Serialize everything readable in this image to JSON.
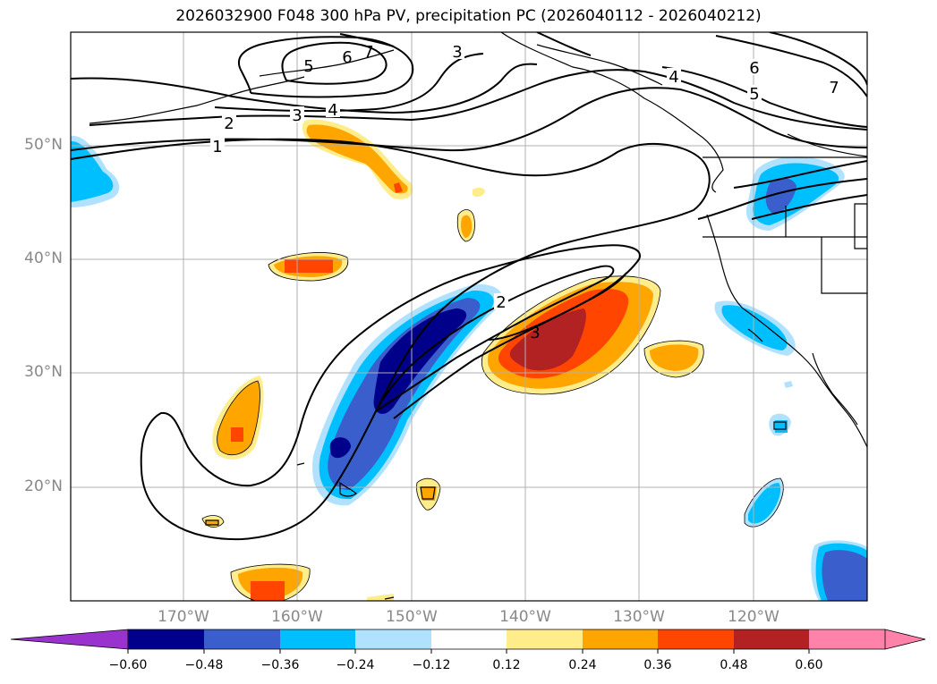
{
  "title": "2026032900 F048 300 hPa PV, precipitation PC (2026040112 - 2026040212)",
  "map": {
    "projection": "PlateCarree",
    "lon_range": [
      -180,
      -110
    ],
    "lat_range": [
      10,
      60
    ],
    "lat_ticks": [
      "50°N",
      "40°N",
      "30°N",
      "20°N"
    ],
    "lat_tick_values": [
      50,
      40,
      30,
      20
    ],
    "lon_ticks": [
      "170°W",
      "160°W",
      "150°W",
      "140°W",
      "130°W",
      "120°W"
    ],
    "lon_tick_values": [
      -170,
      -160,
      -150,
      -140,
      -130,
      -120
    ],
    "grid": true,
    "pv_contour_labels": [
      "1",
      "2",
      "3",
      "4",
      "5",
      "6",
      "7",
      "2",
      "3",
      "3",
      "4",
      "6",
      "5",
      "7"
    ]
  },
  "colorbar": {
    "extend": "both",
    "tick_labels": [
      "−0.60",
      "−0.48",
      "−0.36",
      "−0.24",
      "−0.12",
      "0.12",
      "0.24",
      "0.36",
      "0.48",
      "0.60"
    ],
    "colors": [
      "#9a32cd",
      "#00008b",
      "#3a5fcd",
      "#00bfff",
      "#b0e2ff",
      "#ffffff",
      "#ffec8b",
      "#ffa500",
      "#ff4500",
      "#b22222",
      "#ff82ab"
    ]
  }
}
